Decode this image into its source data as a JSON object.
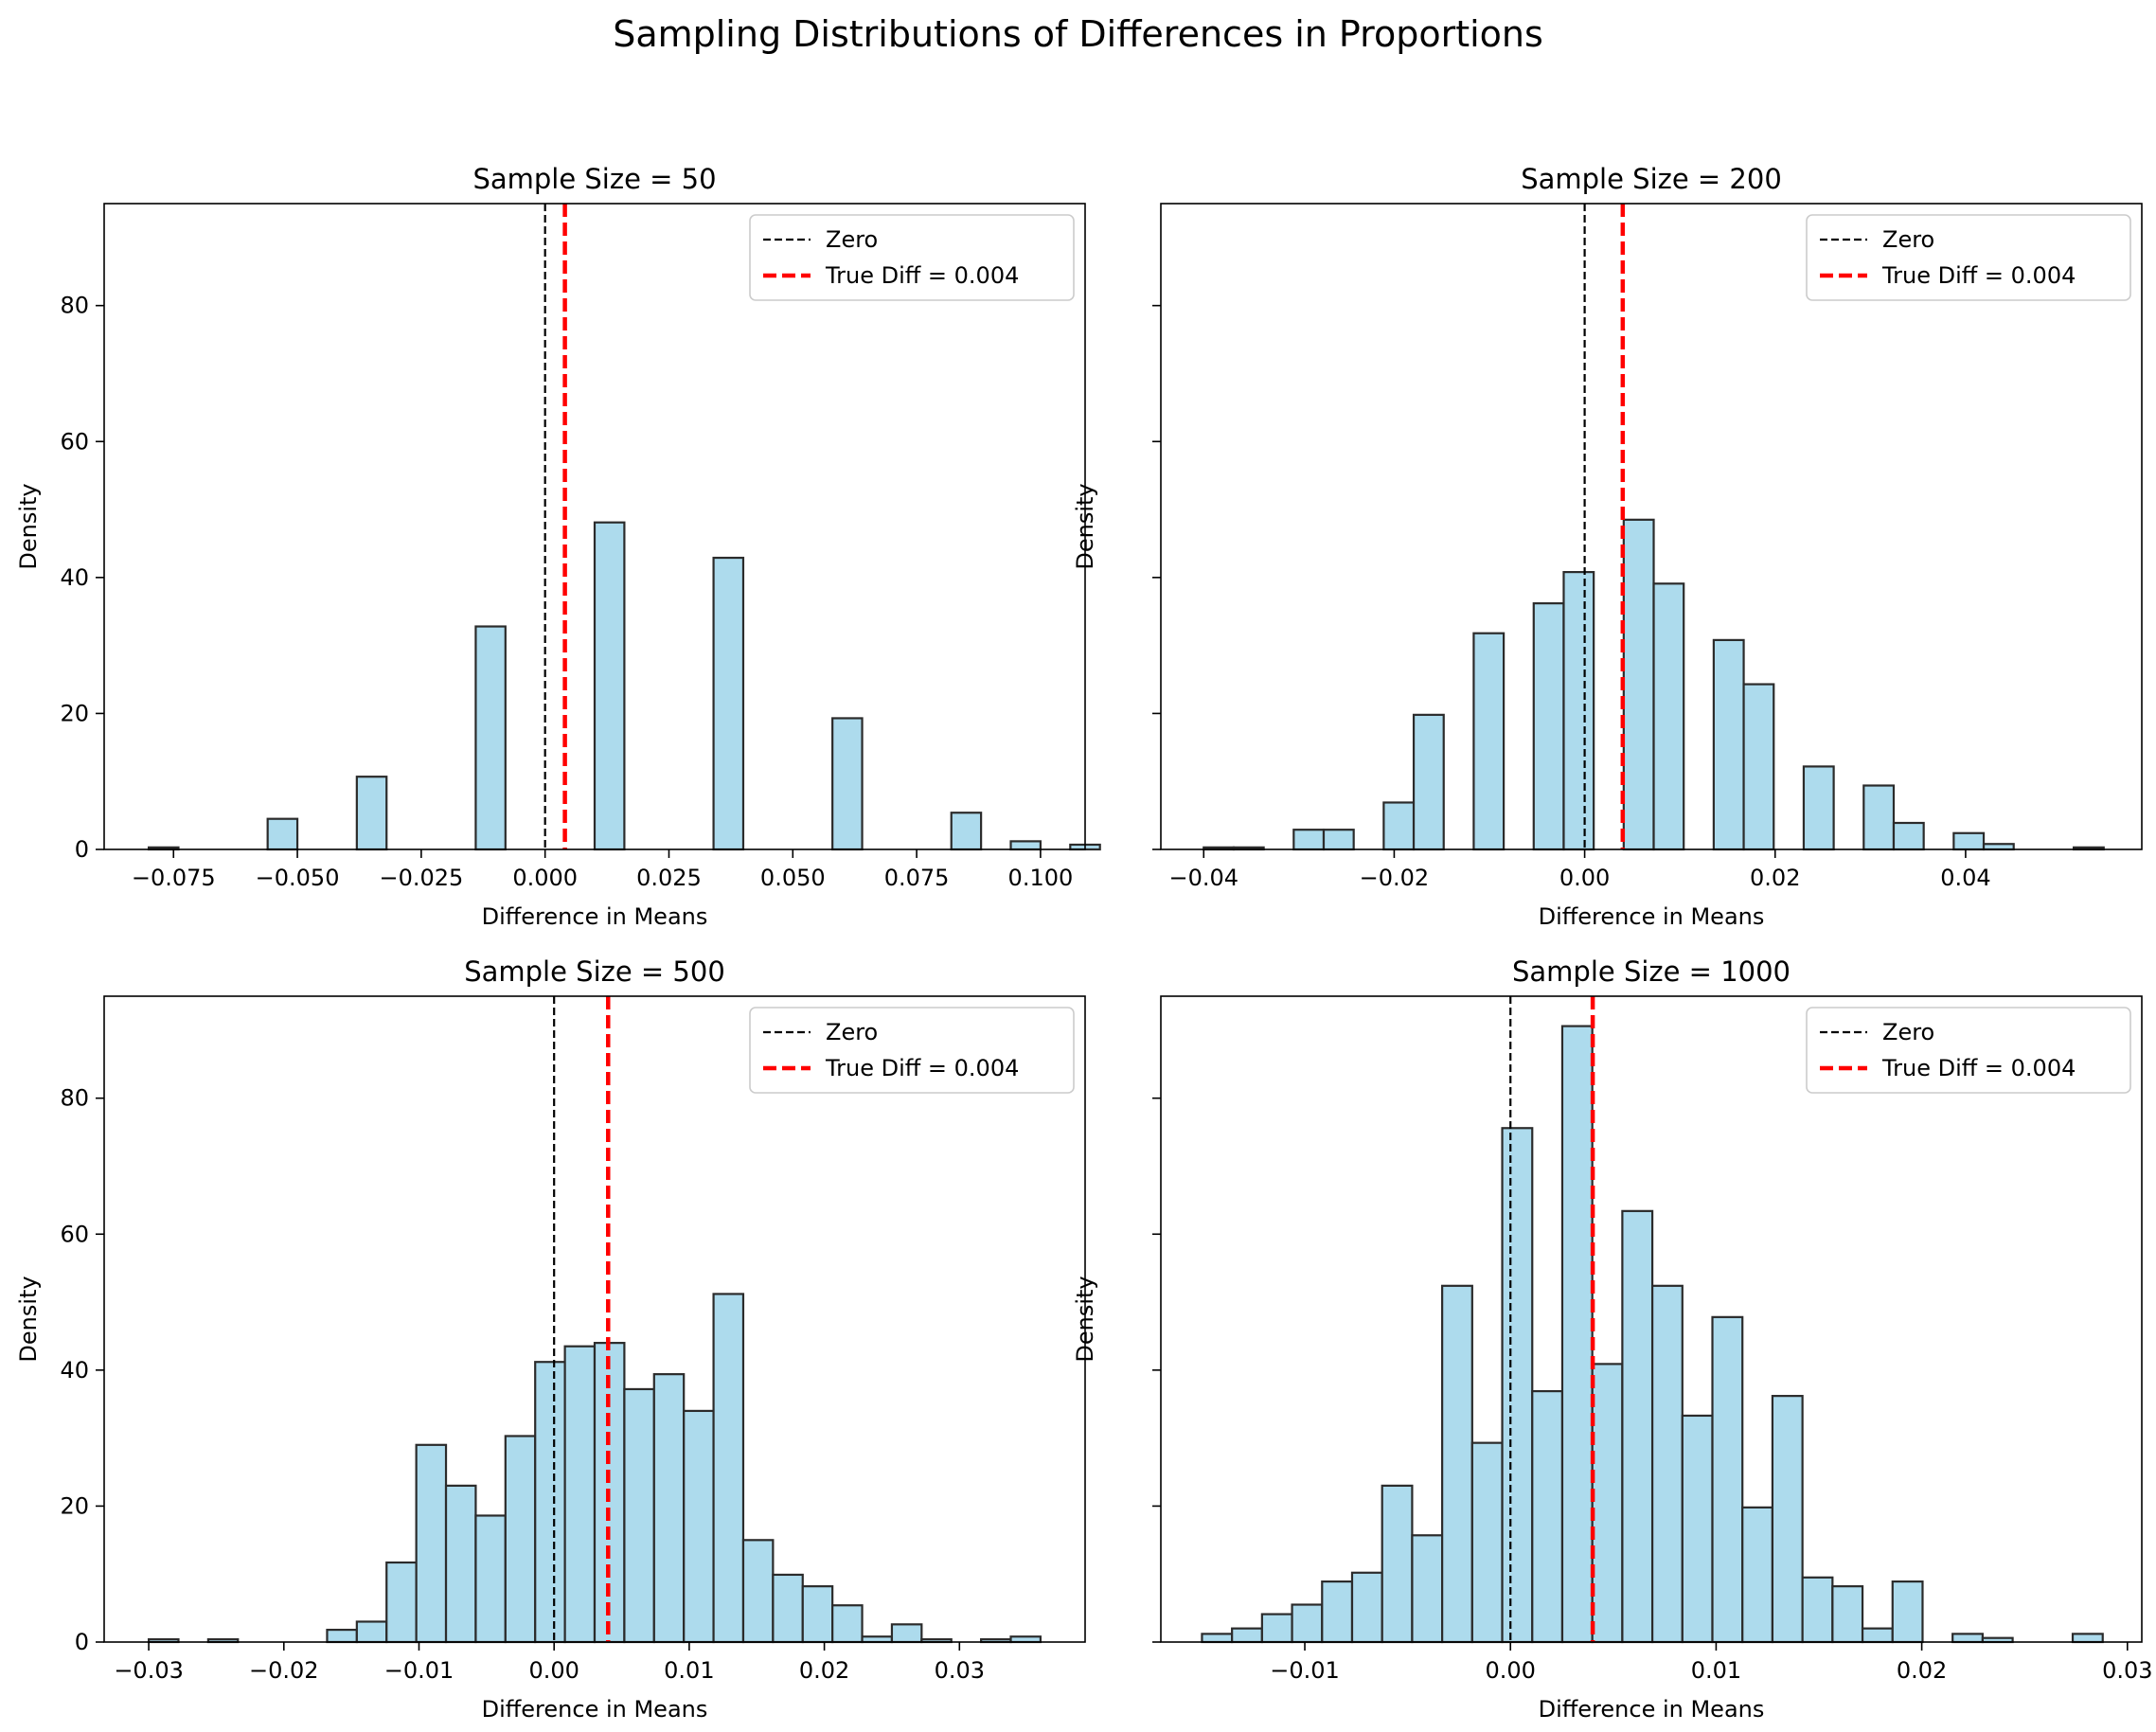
{
  "title": "Sampling Distributions of Differences in Proportions",
  "colors": {
    "bar_fill": "#a9d9ec",
    "bar_edge": "#2b2b2b",
    "zero_line": "#000000",
    "true_line": "#ff0000"
  },
  "chart_data": [
    {
      "type": "bar",
      "title": "Sample Size = 50",
      "xlabel": "Difference in Means",
      "ylabel": "Density",
      "xlim": [
        -0.089,
        0.109
      ],
      "ylim": [
        0,
        95
      ],
      "xticks": [
        -0.075,
        -0.05,
        -0.025,
        0.0,
        0.025,
        0.05,
        0.075,
        0.1
      ],
      "xtick_labels": [
        "−0.075",
        "−0.050",
        "−0.025",
        "0.000",
        "0.025",
        "0.050",
        "0.075",
        "0.100"
      ],
      "yticks": [
        0,
        20,
        40,
        60,
        80
      ],
      "ytick_labels": [
        "0",
        "20",
        "40",
        "60",
        "80"
      ],
      "show_yticklabels": true,
      "bin_start": -0.08,
      "bin_width": 0.006,
      "values": [
        0.3,
        0,
        0,
        0,
        4.5,
        0,
        0,
        10.7,
        0,
        0,
        0,
        32.8,
        0,
        0,
        0,
        48.1,
        0,
        0,
        0,
        42.9,
        0,
        0,
        0,
        19.3,
        0,
        0,
        0,
        5.4,
        0,
        1.2,
        0,
        0.7
      ],
      "zero_line": 0.0,
      "true_diff": 0.004,
      "legend": [
        "Zero",
        "True Diff = 0.004"
      ],
      "legend_loc": "upper right",
      "grid": false
    },
    {
      "type": "bar",
      "title": "Sample Size = 200",
      "xlabel": "Difference in Means",
      "ylabel": "Density",
      "xlim": [
        -0.0445,
        0.0585
      ],
      "ylim": [
        0,
        95
      ],
      "xticks": [
        -0.04,
        -0.02,
        0.0,
        0.02,
        0.04
      ],
      "xtick_labels": [
        "−0.04",
        "−0.02",
        "0.00",
        "0.02",
        "0.04"
      ],
      "yticks": [
        0,
        20,
        40,
        60,
        80
      ],
      "ytick_labels": [
        "0",
        "20",
        "40",
        "60",
        "80"
      ],
      "show_yticklabels": false,
      "bin_start": -0.04,
      "bin_width": 0.00315,
      "values": [
        0.3,
        0.3,
        0,
        2.9,
        2.9,
        0,
        6.9,
        19.8,
        0,
        31.8,
        0,
        36.2,
        40.8,
        0,
        48.5,
        39.1,
        0,
        30.8,
        24.3,
        0,
        12.2,
        0,
        9.4,
        3.9,
        0,
        2.4,
        0.8,
        0,
        0,
        0.3
      ],
      "zero_line": 0.0,
      "true_diff": 0.004,
      "legend": [
        "Zero",
        "True Diff = 0.004"
      ],
      "legend_loc": "upper right",
      "grid": false
    },
    {
      "type": "bar",
      "title": "Sample Size = 500",
      "xlabel": "Difference in Means",
      "ylabel": "Density",
      "xlim": [
        -0.0333,
        0.0393
      ],
      "ylim": [
        0,
        95
      ],
      "xticks": [
        -0.03,
        -0.02,
        -0.01,
        0.0,
        0.01,
        0.02,
        0.03
      ],
      "xtick_labels": [
        "−0.03",
        "−0.02",
        "−0.01",
        "0.00",
        "0.01",
        "0.02",
        "0.03"
      ],
      "yticks": [
        0,
        20,
        40,
        60,
        80
      ],
      "ytick_labels": [
        "0",
        "20",
        "40",
        "60",
        "80"
      ],
      "show_yticklabels": true,
      "bin_start": -0.03,
      "bin_width": 0.0022,
      "values": [
        0.4,
        0,
        0.4,
        0,
        0,
        0,
        1.8,
        3.0,
        11.7,
        29.0,
        23.0,
        18.6,
        30.3,
        41.2,
        43.5,
        44.0,
        37.2,
        39.4,
        34.0,
        51.2,
        15.0,
        9.9,
        8.2,
        5.4,
        0.8,
        2.6,
        0.4,
        0,
        0.4,
        0.8
      ],
      "zero_line": 0.0,
      "true_diff": 0.004,
      "legend": [
        "Zero",
        "True Diff = 0.004"
      ],
      "legend_loc": "upper right",
      "grid": false
    },
    {
      "type": "bar",
      "title": "Sample Size = 1000",
      "xlabel": "Difference in Means",
      "ylabel": "Density",
      "xlim": [
        -0.017,
        0.0307
      ],
      "ylim": [
        0,
        95
      ],
      "xticks": [
        -0.01,
        0.0,
        0.01,
        0.02,
        0.03
      ],
      "xtick_labels": [
        "−0.01",
        "0.00",
        "0.01",
        "0.02",
        "0.03"
      ],
      "yticks": [
        0,
        20,
        40,
        60,
        80
      ],
      "ytick_labels": [
        "0",
        "20",
        "40",
        "60",
        "80"
      ],
      "show_yticklabels": false,
      "bin_start": -0.015,
      "bin_width": 0.00146,
      "values": [
        1.2,
        2.0,
        4.1,
        5.5,
        8.9,
        10.2,
        23.0,
        15.7,
        52.4,
        29.3,
        75.6,
        36.9,
        90.6,
        40.9,
        63.4,
        52.4,
        33.3,
        47.8,
        19.8,
        36.2,
        9.5,
        8.2,
        2.0,
        8.9,
        0,
        1.2,
        0.6,
        0,
        0,
        1.2
      ],
      "zero_line": 0.0,
      "true_diff": 0.004,
      "legend": [
        "Zero",
        "True Diff = 0.004"
      ],
      "legend_loc": "upper right",
      "grid": false
    }
  ]
}
